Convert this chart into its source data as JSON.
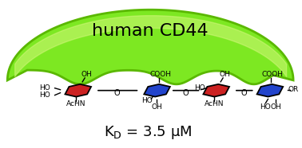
{
  "title": "human CD44",
  "kd_text": "K",
  "kd_sub": "D",
  "kd_value": " = 3.5 μM",
  "bg_color": "#ffffff",
  "green_fill": "#7de822",
  "green_dark": "#5ab800",
  "green_light": "#c8f570",
  "red_sugar": "#cc2222",
  "blue_sugar": "#2244cc",
  "line_color": "#111111",
  "figsize": [
    3.78,
    1.86
  ],
  "dpi": 100
}
